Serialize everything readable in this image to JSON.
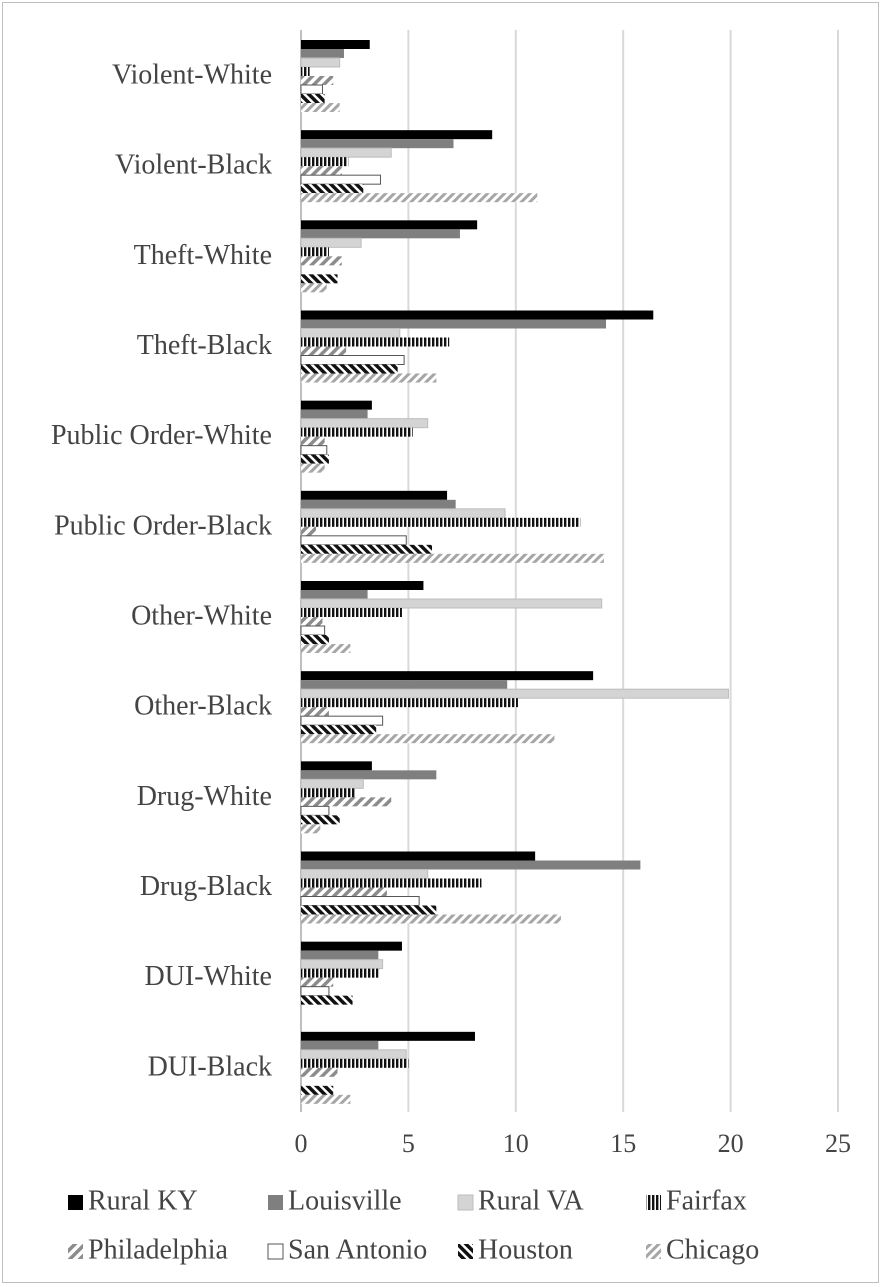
{
  "chart_data": {
    "type": "bar",
    "orientation": "horizontal",
    "categories": [
      "Violent-White",
      "Violent-Black",
      "Theft-White",
      "Theft-Black",
      "Public Order-White",
      "Public Order-Black",
      "Other-White",
      "Other-Black",
      "Drug-White",
      "Drug-Black",
      "DUI-White",
      "DUI-Black"
    ],
    "series": [
      {
        "name": "Rural KY",
        "pattern": "solid-black",
        "values": [
          3.2,
          8.9,
          8.2,
          16.4,
          3.3,
          6.8,
          5.7,
          13.6,
          3.3,
          10.9,
          4.7,
          8.1
        ]
      },
      {
        "name": "Louisville",
        "pattern": "solid-dark-gray",
        "values": [
          2.0,
          7.1,
          7.4,
          14.2,
          3.1,
          7.2,
          3.1,
          9.6,
          6.3,
          15.8,
          3.6,
          3.6
        ]
      },
      {
        "name": "Rural VA",
        "pattern": "solid-light-gray",
        "values": [
          1.8,
          4.2,
          2.8,
          4.6,
          5.9,
          9.5,
          14.0,
          19.9,
          2.9,
          5.9,
          3.8,
          4.9
        ]
      },
      {
        "name": "Fairfax",
        "pattern": "vertical-stripes",
        "values": [
          0.4,
          2.2,
          1.3,
          6.9,
          5.2,
          13.0,
          4.7,
          10.1,
          2.5,
          8.4,
          3.6,
          5.0
        ]
      },
      {
        "name": "Philadelphia",
        "pattern": "diagonal-gray",
        "values": [
          1.5,
          1.9,
          1.9,
          2.1,
          1.1,
          0.7,
          1.0,
          1.3,
          4.2,
          4.0,
          1.5,
          1.7
        ]
      },
      {
        "name": "San Antonio",
        "pattern": "white-outline",
        "values": [
          1.0,
          3.7,
          0.0,
          4.8,
          1.2,
          4.9,
          1.1,
          3.8,
          1.3,
          5.5,
          1.3,
          0.0
        ]
      },
      {
        "name": "Houston",
        "pattern": "dark-diagonal",
        "values": [
          1.1,
          2.9,
          1.7,
          4.5,
          1.3,
          6.1,
          1.3,
          3.5,
          1.8,
          6.3,
          2.4,
          1.5
        ]
      },
      {
        "name": "Chicago",
        "pattern": "light-diagonal",
        "values": [
          1.8,
          11.0,
          1.2,
          6.3,
          1.1,
          14.1,
          2.3,
          11.8,
          0.9,
          12.1,
          0.0,
          2.3
        ]
      }
    ],
    "xlim": [
      0,
      25
    ],
    "x_ticks": [
      "0",
      "5",
      "10",
      "15",
      "20",
      "25"
    ],
    "grid": "vertical",
    "legend_position": "bottom"
  }
}
